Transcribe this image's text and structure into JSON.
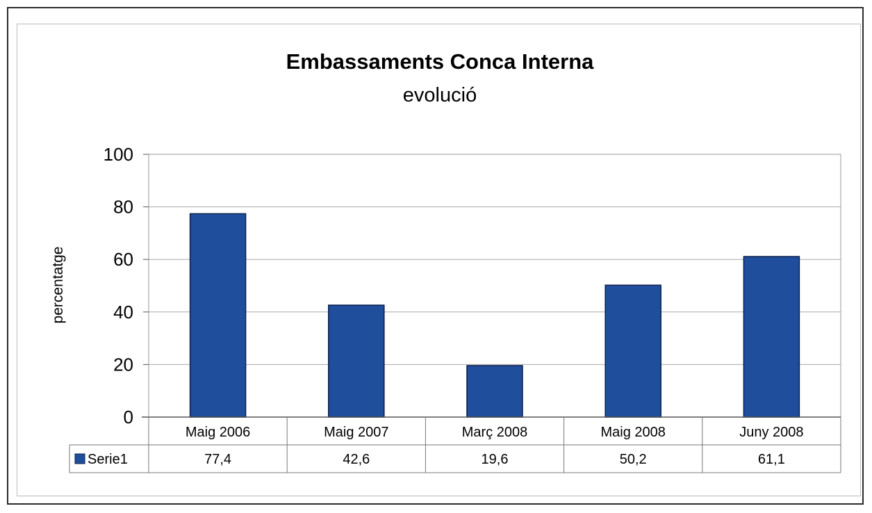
{
  "chart_data": {
    "type": "bar",
    "title": "Embassaments Conca Interna",
    "subtitle": "evolució",
    "xlabel": "",
    "ylabel": "percentatge",
    "ylim": [
      0,
      100
    ],
    "yticks": [
      "0",
      "20",
      "40",
      "60",
      "80",
      "100"
    ],
    "categories": [
      "Maig 2006",
      "Maig 2007",
      "Març 2008",
      "Maig 2008",
      "Juny 2008"
    ],
    "series": [
      {
        "name": "Serie1",
        "values": [
          77.4,
          42.6,
          19.6,
          50.2,
          61.1
        ],
        "value_labels": [
          "77,4",
          "42,6",
          "19,6",
          "50,2",
          "61,1"
        ],
        "color": "#1f4e9c"
      }
    ],
    "grid": true,
    "legend": "data-table"
  }
}
